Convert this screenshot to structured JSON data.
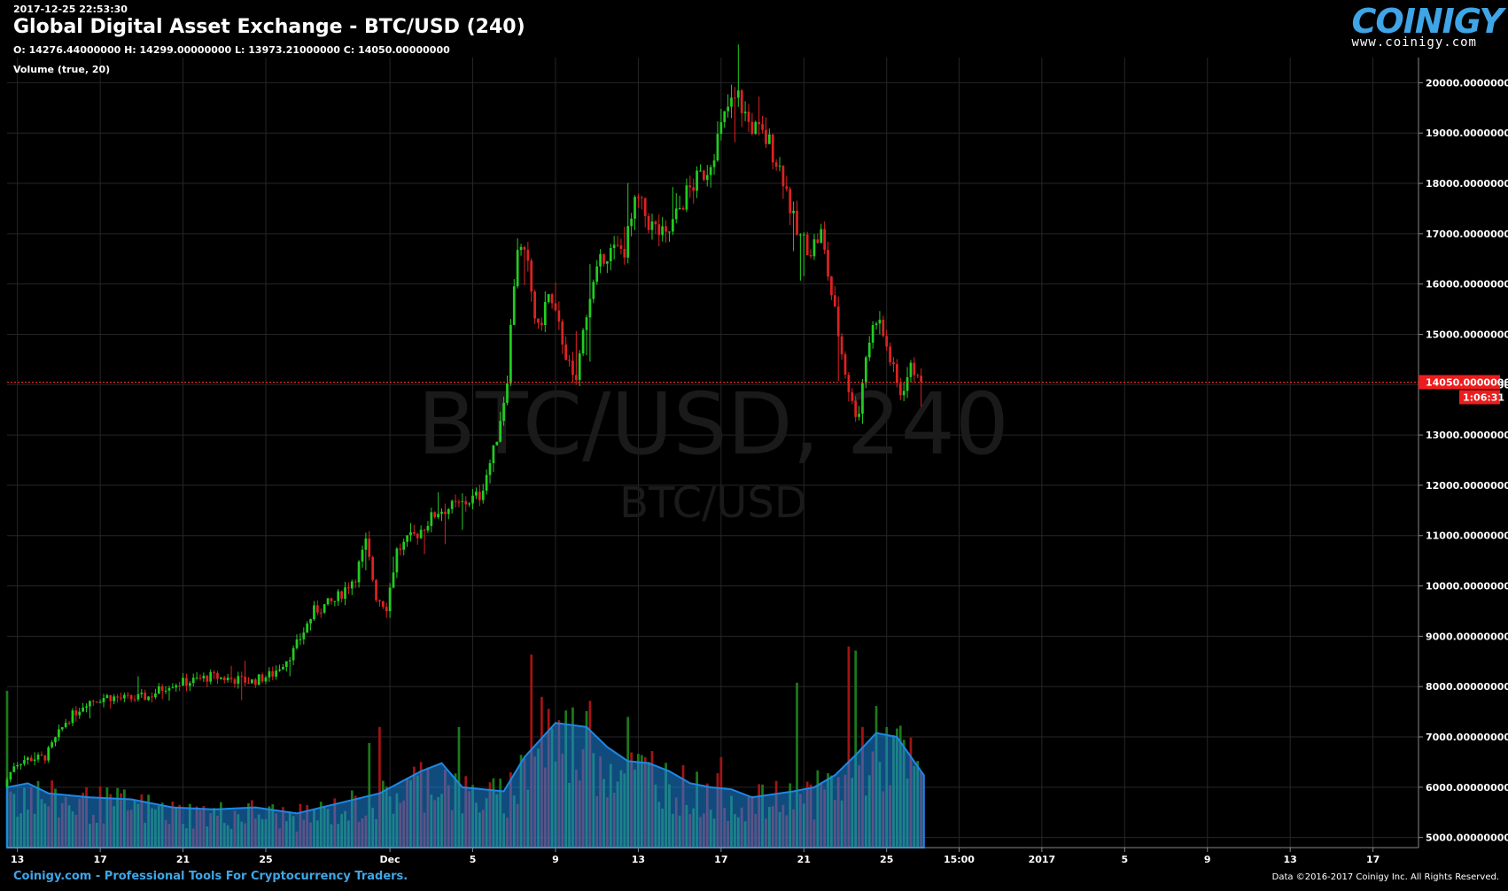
{
  "header": {
    "timestamp": "2017-12-25 22:53:30",
    "title": "Global Digital Asset Exchange - BTC/USD (240)",
    "ohlc": "O: 14276.44000000 H: 14299.00000000 L: 13973.21000000 C: 14050.00000000",
    "volume_label": "Volume (true, 20)"
  },
  "logo": {
    "word": "COINIGY",
    "url": "www.coinigy.com"
  },
  "watermark": {
    "main": "BTC/USD, 240",
    "sub": "BTC/USD"
  },
  "footer": {
    "left": "Coinigy.com - Professional Tools For Cryptocurrency Traders.",
    "right": "Data ©2016-2017 Coinigy Inc. All Rights Reserved."
  },
  "colors": {
    "up": "#22cc22",
    "down": "#dd2222",
    "volume_ma": "#1e88e5",
    "price_line": "#ff2a2a",
    "accent": "#3fa5e6"
  },
  "chart_data": {
    "type": "candlestick",
    "interval": "240",
    "ylim": [
      4800,
      20500
    ],
    "y_ticks": [
      {
        "value": 5000,
        "label": "5000.00000000"
      },
      {
        "value": 6000,
        "label": "6000.00000000"
      },
      {
        "value": 7000,
        "label": "7000.00000000"
      },
      {
        "value": 8000,
        "label": "8000.00000000"
      },
      {
        "value": 9000,
        "label": "9000.00000000"
      },
      {
        "value": 10000,
        "label": "10000.00000000"
      },
      {
        "value": 11000,
        "label": "11000.00000000"
      },
      {
        "value": 12000,
        "label": "12000.00000000"
      },
      {
        "value": 13000,
        "label": "13000.00000000"
      },
      {
        "value": 14000,
        "label": "14000.00000000"
      },
      {
        "value": 15000,
        "label": "15000.00000000"
      },
      {
        "value": 16000,
        "label": "16000.00000000"
      },
      {
        "value": 17000,
        "label": "17000.00000000"
      },
      {
        "value": 18000,
        "label": "18000.00000000"
      },
      {
        "value": 19000,
        "label": "19000.00000000"
      },
      {
        "value": 20000,
        "label": "20000.00000000"
      }
    ],
    "x_ticks": [
      {
        "day": 0.5,
        "label": "13"
      },
      {
        "day": 4.5,
        "label": "17"
      },
      {
        "day": 8.5,
        "label": "21"
      },
      {
        "day": 12.5,
        "label": "25"
      },
      {
        "day": 18.5,
        "label": "Dec"
      },
      {
        "day": 22.5,
        "label": "5"
      },
      {
        "day": 26.5,
        "label": "9"
      },
      {
        "day": 30.5,
        "label": "13"
      },
      {
        "day": 34.5,
        "label": "17"
      },
      {
        "day": 38.5,
        "label": "21"
      },
      {
        "day": 42.5,
        "label": "25"
      },
      {
        "day": 46.0,
        "label": "15:00"
      },
      {
        "day": 50.0,
        "label": "2017"
      },
      {
        "day": 54.0,
        "label": "5"
      },
      {
        "day": 58.0,
        "label": "9"
      },
      {
        "day": 62.0,
        "label": "13"
      },
      {
        "day": 66.0,
        "label": "17"
      }
    ],
    "x_range_days": [
      0,
      68.2
    ],
    "current_price": {
      "value": 14050,
      "label": "14050.00000000",
      "countdown": "1:06:31"
    },
    "daily_path": [
      [
        0,
        6000
      ],
      [
        0.5,
        6450
      ],
      [
        1,
        6550
      ],
      [
        2,
        6600
      ],
      [
        3,
        7300
      ],
      [
        4,
        7700
      ],
      [
        5,
        7800
      ],
      [
        6,
        7750
      ],
      [
        7,
        7800
      ],
      [
        8,
        8050
      ],
      [
        9,
        8100
      ],
      [
        10,
        8200
      ],
      [
        11,
        8150
      ],
      [
        12,
        8100
      ],
      [
        13,
        8250
      ],
      [
        14,
        8700
      ],
      [
        15,
        9500
      ],
      [
        16,
        9700
      ],
      [
        17,
        10200
      ],
      [
        17.5,
        10850
      ],
      [
        18,
        9800
      ],
      [
        18.5,
        9600
      ],
      [
        19,
        10700
      ],
      [
        20,
        11050
      ],
      [
        21,
        11500
      ],
      [
        22,
        11600
      ],
      [
        23,
        11800
      ],
      [
        23.7,
        12700
      ],
      [
        24.3,
        14000
      ],
      [
        24.8,
        16800
      ],
      [
        25.3,
        16400
      ],
      [
        25.8,
        15000
      ],
      [
        26.3,
        15800
      ],
      [
        27.0,
        14900
      ],
      [
        27.6,
        13900
      ],
      [
        28.2,
        15600
      ],
      [
        29.0,
        16600
      ],
      [
        30.0,
        16700
      ],
      [
        30.6,
        17700
      ],
      [
        31.2,
        17200
      ],
      [
        32.0,
        16900
      ],
      [
        33.0,
        17800
      ],
      [
        34.0,
        18300
      ],
      [
        34.6,
        19000
      ],
      [
        35.0,
        19500
      ],
      [
        35.5,
        19700
      ],
      [
        36.0,
        19200
      ],
      [
        37.0,
        18800
      ],
      [
        37.7,
        18100
      ],
      [
        38.3,
        17000
      ],
      [
        39.0,
        16700
      ],
      [
        39.5,
        17000
      ],
      [
        40.0,
        15800
      ],
      [
        40.6,
        14400
      ],
      [
        41.0,
        13600
      ],
      [
        41.3,
        13400
      ],
      [
        41.7,
        14700
      ],
      [
        42.2,
        15400
      ],
      [
        42.7,
        14700
      ],
      [
        43.3,
        13800
      ],
      [
        43.8,
        14300
      ],
      [
        44.3,
        14300
      ]
    ],
    "volume": {
      "label": "Volume (true, 20)",
      "ma_path": [
        [
          0,
          0.3
        ],
        [
          1,
          0.32
        ],
        [
          2,
          0.27
        ],
        [
          4,
          0.25
        ],
        [
          6,
          0.24
        ],
        [
          8,
          0.2
        ],
        [
          10,
          0.19
        ],
        [
          12,
          0.2
        ],
        [
          14,
          0.17
        ],
        [
          16,
          0.22
        ],
        [
          18,
          0.27
        ],
        [
          20,
          0.38
        ],
        [
          21,
          0.42
        ],
        [
          22,
          0.3
        ],
        [
          24,
          0.28
        ],
        [
          25,
          0.45
        ],
        [
          26.5,
          0.62
        ],
        [
          28,
          0.6
        ],
        [
          29,
          0.5
        ],
        [
          30,
          0.43
        ],
        [
          31,
          0.42
        ],
        [
          32,
          0.38
        ],
        [
          33,
          0.32
        ],
        [
          34,
          0.3
        ],
        [
          35,
          0.29
        ],
        [
          36,
          0.25
        ],
        [
          38,
          0.28
        ],
        [
          39,
          0.3
        ],
        [
          40,
          0.36
        ],
        [
          41,
          0.46
        ],
        [
          42,
          0.57
        ],
        [
          43,
          0.55
        ],
        [
          44.3,
          0.36
        ]
      ],
      "spikes": [
        [
          0,
          0.78
        ],
        [
          17.5,
          0.52
        ],
        [
          18.0,
          0.6
        ],
        [
          21.8,
          0.6
        ],
        [
          25.3,
          0.96
        ],
        [
          25.8,
          0.75
        ],
        [
          26.2,
          0.69
        ],
        [
          28.2,
          0.73
        ],
        [
          30.0,
          0.65
        ],
        [
          31.2,
          0.48
        ],
        [
          34.5,
          0.45
        ],
        [
          38.2,
          0.82
        ],
        [
          40.6,
          1.0
        ],
        [
          41.0,
          0.98
        ],
        [
          41.3,
          0.6
        ],
        [
          44.3,
          0.05
        ]
      ]
    }
  }
}
